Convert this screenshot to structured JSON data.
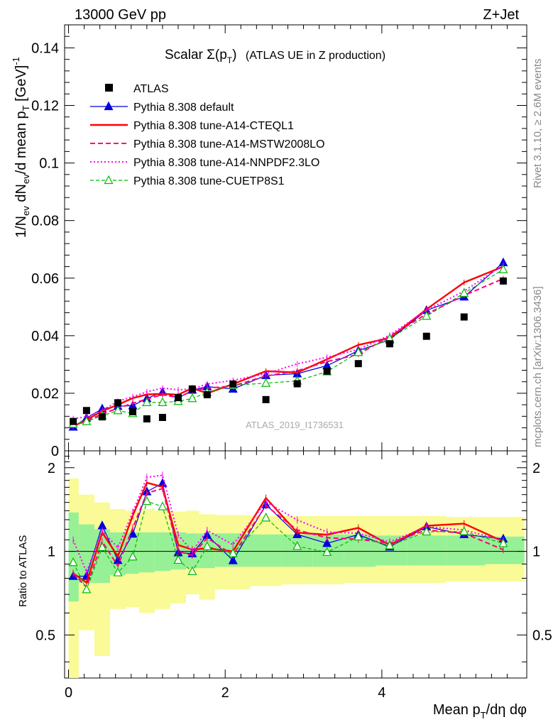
{
  "header": {
    "left": "13000 GeV pp",
    "right": "Z+Jet"
  },
  "title": {
    "prefix": "Scalar Σ(p",
    "sub": "T",
    "suffix": ")",
    "tail": "(ATLAS UE in Z production)"
  },
  "side_labels": {
    "rivet": "Rivet 3.1.10, ≥ 2.6M events",
    "mcplots": "mcplots.cern.ch [arXiv:1306.3436]"
  },
  "watermark": "ATLAS_2019_I1736531",
  "colors": {
    "atlas": "#000000",
    "default": "#0000dd",
    "cteql1": "#ff0000",
    "mstw": "#ff0077",
    "nnpdf": "#ff00ff",
    "cuetp": "#00bb00",
    "band_green": "#96f096",
    "band_yellow": "#fafa96"
  },
  "chart_data": {
    "type": "line",
    "title": "Scalar Σ(pT) (ATLAS UE in Z production)",
    "xlabel": "Mean pT/dη dφ",
    "ylabel": "1/Nev dNev/d mean pT [GeV]-1",
    "ratio_ylabel": "Ratio to ATLAS",
    "xlim": [
      -0.05,
      5.85
    ],
    "ylim": [
      0,
      0.148
    ],
    "ratio_ylim": [
      0.35,
      2.3
    ],
    "x_ticks": [
      0,
      2,
      4
    ],
    "y_ticks": [
      0,
      0.02,
      0.04,
      0.06,
      0.08,
      0.1,
      0.12,
      0.14
    ],
    "y_tick_labels": [
      "0",
      "0.02",
      "0.04",
      "0.06",
      "0.08",
      "0.1",
      "0.12",
      "0.14"
    ],
    "ratio_ticks": [
      0.5,
      1,
      2
    ],
    "ratio_tick_labels": [
      "0.5",
      "1",
      "2"
    ],
    "legend_position": "top-left",
    "x": [
      0.06,
      0.23,
      0.43,
      0.63,
      0.82,
      1.0,
      1.2,
      1.4,
      1.58,
      1.77,
      2.1,
      2.52,
      2.92,
      3.3,
      3.7,
      4.1,
      4.57,
      5.05,
      5.55
    ],
    "atlas_bins": [
      [
        0.0,
        0.13
      ],
      [
        0.13,
        0.33
      ],
      [
        0.33,
        0.53
      ],
      [
        0.53,
        0.73
      ],
      [
        0.73,
        0.9
      ],
      [
        0.9,
        1.1
      ],
      [
        1.1,
        1.3
      ],
      [
        1.3,
        1.5
      ],
      [
        1.5,
        1.67
      ],
      [
        1.67,
        1.87
      ],
      [
        1.87,
        2.32
      ],
      [
        2.32,
        2.72
      ],
      [
        2.72,
        3.12
      ],
      [
        3.12,
        3.52
      ],
      [
        3.52,
        3.92
      ],
      [
        3.92,
        4.32
      ],
      [
        4.32,
        4.82
      ],
      [
        4.82,
        5.32
      ],
      [
        5.32,
        5.82
      ]
    ],
    "atlas_values": [
      0.0102,
      0.014,
      0.0118,
      0.0167,
      0.0136,
      0.0111,
      0.0116,
      0.0185,
      0.0215,
      0.0195,
      0.0232,
      0.0178,
      0.0233,
      0.0277,
      0.0303,
      0.0372,
      0.0398,
      0.0465,
      0.059
    ],
    "band_green": [
      [
        0.66,
        1.38
      ],
      [
        0.77,
        1.25
      ],
      [
        0.77,
        1.2
      ],
      [
        0.82,
        1.17
      ],
      [
        0.83,
        1.17
      ],
      [
        0.84,
        1.17
      ],
      [
        0.85,
        1.17
      ],
      [
        0.86,
        1.17
      ],
      [
        0.87,
        1.16
      ],
      [
        0.87,
        1.16
      ],
      [
        0.88,
        1.16
      ],
      [
        0.88,
        1.15
      ],
      [
        0.88,
        1.15
      ],
      [
        0.88,
        1.15
      ],
      [
        0.88,
        1.15
      ],
      [
        0.89,
        1.14
      ],
      [
        0.89,
        1.14
      ],
      [
        0.89,
        1.14
      ],
      [
        0.9,
        1.13
      ]
    ],
    "band_yellow": [
      [
        0.35,
        1.83
      ],
      [
        0.52,
        1.6
      ],
      [
        0.42,
        1.5
      ],
      [
        0.62,
        1.42
      ],
      [
        0.63,
        1.4
      ],
      [
        0.6,
        1.42
      ],
      [
        0.62,
        1.4
      ],
      [
        0.65,
        1.39
      ],
      [
        0.7,
        1.4
      ],
      [
        0.67,
        1.36
      ],
      [
        0.73,
        1.35
      ],
      [
        0.75,
        1.34
      ],
      [
        0.76,
        1.34
      ],
      [
        0.76,
        1.34
      ],
      [
        0.77,
        1.34
      ],
      [
        0.77,
        1.34
      ],
      [
        0.77,
        1.34
      ],
      [
        0.78,
        1.33
      ],
      [
        0.78,
        1.33
      ]
    ],
    "series": [
      {
        "name": "ATLAS",
        "key": "atlas",
        "style": "square"
      },
      {
        "name": "Pythia 8.308 default",
        "key": "default",
        "style": "solid-thin-triangle",
        "values": [
          0.0083,
          0.0114,
          0.0146,
          0.0155,
          0.0157,
          0.0182,
          0.0204,
          0.0183,
          0.0211,
          0.0223,
          0.0215,
          0.0262,
          0.0268,
          0.0296,
          0.0348,
          0.0386,
          0.0488,
          0.0535,
          0.0654
        ]
      },
      {
        "name": "Pythia 8.308 tune-A14-CTEQL1",
        "key": "cteql1",
        "style": "solid-thick",
        "values": [
          0.0085,
          0.0108,
          0.0138,
          0.016,
          0.0183,
          0.0196,
          0.0198,
          0.0195,
          0.0218,
          0.02,
          0.0232,
          0.0277,
          0.0272,
          0.0318,
          0.0368,
          0.0392,
          0.0492,
          0.0585,
          0.064
        ]
      },
      {
        "name": "Pythia 8.308 tune-A14-MSTW2008LO",
        "key": "mstw",
        "style": "dashed",
        "values": [
          0.0085,
          0.0104,
          0.0128,
          0.0148,
          0.0165,
          0.018,
          0.0195,
          0.0185,
          0.0208,
          0.0218,
          0.0225,
          0.026,
          0.0278,
          0.031,
          0.0335,
          0.0398,
          0.0475,
          0.054,
          0.0598
        ]
      },
      {
        "name": "Pythia 8.308 tune-A14-NNPDF2.3LO",
        "key": "nnpdf",
        "style": "dotted",
        "values": [
          0.0112,
          0.0118,
          0.014,
          0.0172,
          0.0188,
          0.0205,
          0.0218,
          0.0212,
          0.0215,
          0.0232,
          0.0245,
          0.0268,
          0.0302,
          0.0325,
          0.0352,
          0.0402,
          0.0488,
          0.0555,
          0.0645
        ]
      },
      {
        "name": "Pythia 8.308 tune-CUETP8S1",
        "key": "cuetp",
        "style": "dashed-open-triangle",
        "values": [
          0.0093,
          0.0102,
          0.0122,
          0.014,
          0.013,
          0.0168,
          0.0168,
          0.0172,
          0.0182,
          0.0203,
          0.0228,
          0.0235,
          0.0243,
          0.0275,
          0.0342,
          0.039,
          0.0468,
          0.0548,
          0.063
        ]
      }
    ]
  }
}
